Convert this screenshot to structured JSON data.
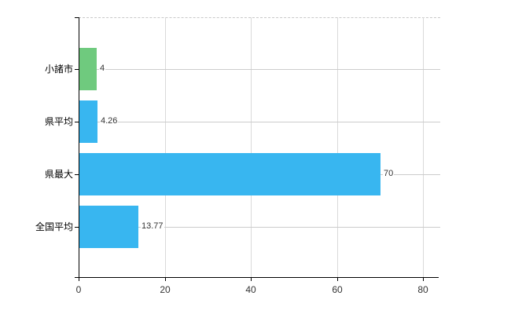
{
  "chart_data": {
    "type": "bar",
    "orientation": "horizontal",
    "title": "",
    "categories": [
      "小諸市",
      "県平均",
      "県最大",
      "全国平均"
    ],
    "values": [
      4,
      4.26,
      70,
      13.77
    ],
    "value_labels": [
      "4",
      "4.26",
      "70",
      "13.77"
    ],
    "series": [
      {
        "name": "value",
        "values": [
          4,
          4.26,
          70,
          13.77
        ]
      }
    ],
    "bar_colors": [
      "#6fca7e",
      "#38b6f0",
      "#38b6f0",
      "#38b6f0"
    ],
    "x_ticks": [
      0,
      20,
      40,
      60,
      80
    ],
    "x_tick_labels": [
      "0",
      "20",
      "40",
      "60",
      "80"
    ],
    "xlim": [
      0,
      84
    ],
    "grid": true,
    "legend": "none"
  },
  "colors": {
    "bar_green": "#6fca7e",
    "bar_blue": "#38b6f0",
    "grid": "#d9d9d9",
    "grid_row": "#cccccc",
    "axis": "#000000",
    "tick_text": "#333333",
    "category_text": "#000000",
    "value_text": "#333333",
    "background": "#ffffff"
  }
}
